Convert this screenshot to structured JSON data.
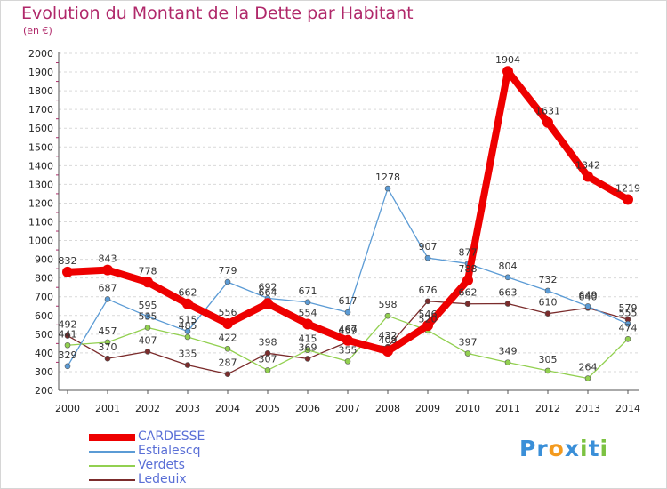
{
  "header": {
    "title": "Evolution du Montant de la Dette par Habitant",
    "subtitle": "(en €)"
  },
  "logo": {
    "text": "Proxiti",
    "letters": [
      {
        "ch": "P",
        "color": "#3a8fd8"
      },
      {
        "ch": "r",
        "color": "#3a8fd8"
      },
      {
        "ch": "o",
        "color": "#f39a1e"
      },
      {
        "ch": "x",
        "color": "#3a8fd8"
      },
      {
        "ch": "i",
        "color": "#7cc242"
      },
      {
        "ch": "t",
        "color": "#3a8fd8"
      },
      {
        "ch": "i",
        "color": "#7cc242"
      }
    ]
  },
  "chart_data": {
    "type": "line",
    "title": "Evolution du Montant de la Dette par Habitant",
    "subtitle": "(en €)",
    "x": [
      2000,
      2001,
      2002,
      2003,
      2004,
      2005,
      2006,
      2007,
      2008,
      2009,
      2010,
      2011,
      2012,
      2013,
      2014
    ],
    "ylim": [
      200,
      2000
    ],
    "yticks": [
      200,
      300,
      400,
      500,
      600,
      700,
      800,
      900,
      1000,
      1100,
      1200,
      1300,
      1400,
      1500,
      1600,
      1700,
      1800,
      1900,
      2000
    ],
    "grid": "horizontal dashed",
    "legend_position": "bottom-left",
    "series": [
      {
        "name": "CARDESSE",
        "color": "#ee0000",
        "values": [
          832,
          843,
          778,
          662,
          556,
          664,
          554,
          467,
          409,
          546,
          788,
          1904,
          1631,
          1342,
          1219
        ]
      },
      {
        "name": "Estialescq",
        "color": "#5b9bd5",
        "values": [
          329,
          687,
          595,
          515,
          779,
          692,
          671,
          617,
          1278,
          907,
          877,
          804,
          732,
          649,
          555
        ]
      },
      {
        "name": "Verdets",
        "color": "#92d050",
        "values": [
          441,
          457,
          535,
          485,
          422,
          307,
          415,
          355,
          598,
          520,
          397,
          349,
          305,
          264,
          474
        ]
      },
      {
        "name": "Ledeuix",
        "color": "#7b2c2c",
        "values": [
          492,
          370,
          407,
          335,
          287,
          398,
          369,
          459,
          432,
          676,
          662,
          663,
          610,
          640,
          579
        ]
      }
    ]
  }
}
